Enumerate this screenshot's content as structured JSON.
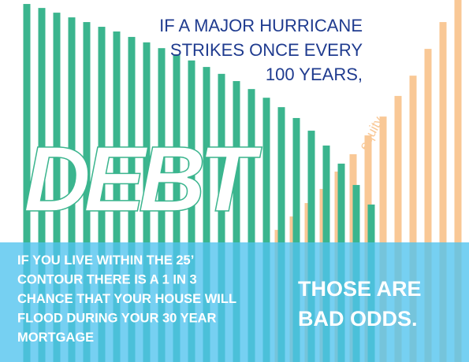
{
  "chart_data": {
    "type": "bar",
    "title_lines": [
      "IF A MAJOR HURRICANE",
      "STRIKES ONCE EVERY",
      "100 YEARS,"
    ],
    "note_lines": [
      "IF YOU LIVE WITHIN THE 25’",
      "CONTOUR THERE IS A 1 IN 3",
      "CHANCE THAT YOUR HOUSE WILL",
      "FLOOD DURING YOUR 30 YEAR",
      "MORTGAGE"
    ],
    "conclusion_lines": [
      "THOSE ARE",
      "BAD ODDS."
    ],
    "categories": [
      null,
      null,
      null,
      null,
      null,
      null,
      null,
      null,
      null,
      null,
      null,
      null,
      null,
      null,
      null,
      null,
      null,
      null,
      null,
      null,
      null,
      null,
      null,
      null,
      null,
      null,
      null,
      null,
      null,
      null
    ],
    "series": [
      {
        "name": "DEBT",
        "color": "#3bb58e",
        "values": [
          98.9,
          97.8,
          96.5,
          95.2,
          93.9,
          92.6,
          91.3,
          89.8,
          88.3,
          86.7,
          85,
          83.3,
          81.5,
          79.6,
          77.6,
          75.4,
          73,
          70.4,
          67.4,
          63.9,
          59.8,
          54.8,
          48.9,
          43.5,
          null,
          null,
          null,
          null,
          null,
          null
        ]
      },
      {
        "name": "equity",
        "color": "#f9c896",
        "values": [
          null,
          null,
          null,
          null,
          null,
          null,
          null,
          null,
          null,
          null,
          null,
          null,
          null,
          null,
          null,
          null,
          null,
          36.5,
          40.2,
          43.9,
          47.8,
          52.6,
          57.4,
          62.6,
          67.8,
          73.5,
          79.1,
          86.5,
          93.9,
          100
        ]
      }
    ],
    "ylim": [
      0,
      100
    ],
    "grid": false
  }
}
